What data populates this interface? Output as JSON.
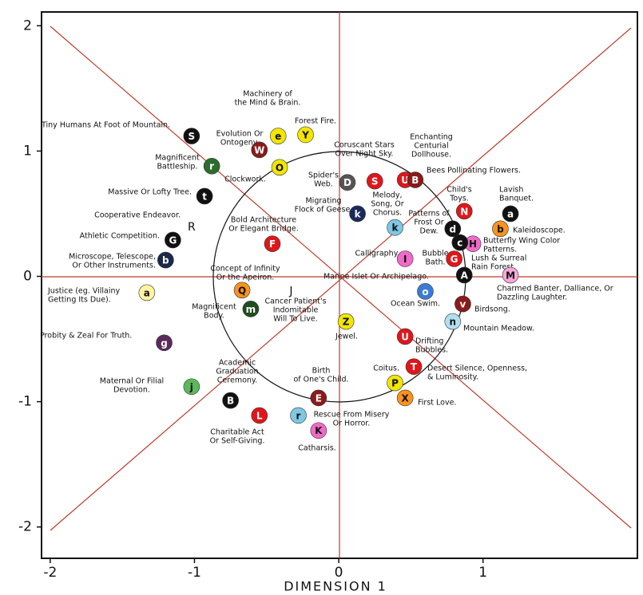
{
  "chart_data": {
    "type": "scatter",
    "x_label": "DIMENSION 1",
    "xlim": [
      -2.06,
      2.07
    ],
    "ylim": [
      -2.25,
      2.11
    ],
    "xticks": [
      -2,
      -1,
      0,
      1
    ],
    "yticks": [
      -2,
      -1,
      0,
      1,
      2
    ],
    "points": [
      {
        "letter": "S",
        "color": "#111111",
        "x": -1.02,
        "y": 1.12,
        "label": [
          "Tiny Humans At Foot of Mountain."
        ]
      },
      {
        "letter": "W",
        "color": "#8b1a1a",
        "x": -0.55,
        "y": 1.01,
        "label": [
          "Evolution Or",
          "Ontogeny."
        ]
      },
      {
        "letter": "e",
        "color": "#f2e600",
        "x": -0.42,
        "y": 1.12,
        "label": [
          "Machinery of",
          "the Mind & Brain."
        ]
      },
      {
        "letter": "Y",
        "color": "#f2e600",
        "x": -0.23,
        "y": 1.13,
        "label": [
          "Forest Fire."
        ]
      },
      {
        "letter": "r",
        "color": "#2e6b2e",
        "x": -0.88,
        "y": 0.88,
        "label": [
          "Magnificent",
          "Battleship."
        ]
      },
      {
        "letter": "O",
        "color": "#f2e600",
        "x": -0.41,
        "y": 0.87,
        "label": [
          "Clockwork."
        ]
      },
      {
        "letter": "D",
        "color": "#555555",
        "x": 0.06,
        "y": 0.75,
        "label": [
          "Spider's",
          "Web."
        ]
      },
      {
        "letter": "S",
        "color": "#e0161b",
        "x": 0.25,
        "y": 0.76,
        "label": [
          "Coruscant Stars",
          "Over Night Sky."
        ]
      },
      {
        "letter": "U",
        "color": "#e0161b",
        "x": 0.46,
        "y": 0.77,
        "label": [
          "Enchanting",
          "Centurial",
          "Dollhouse."
        ]
      },
      {
        "letter": "B",
        "color": "#8b1a1a",
        "x": 0.53,
        "y": 0.77,
        "label": [
          "Bees Pollinating Flowers."
        ]
      },
      {
        "letter": "t",
        "color": "#111111",
        "x": -0.93,
        "y": 0.64,
        "label": [
          "Massive Or Lofty Tree."
        ]
      },
      {
        "letter": "R",
        "x": -1.02,
        "y": 0.39,
        "label": [
          "Cooperative Endeavor."
        ]
      },
      {
        "letter": "G",
        "color": "#111111",
        "x": -1.15,
        "y": 0.29,
        "label": [
          "Athletic Competition."
        ]
      },
      {
        "letter": "b",
        "color": "#1a2a4a",
        "x": -1.2,
        "y": 0.13,
        "label": [
          "Microscope, Telescope,",
          "Or Other Instruments."
        ]
      },
      {
        "letter": "F",
        "color": "#e0161b",
        "x": -0.46,
        "y": 0.26,
        "label": [
          "Bold Architecture",
          "Or Elegant Bridge."
        ]
      },
      {
        "letter": "k",
        "color": "#1a2a5a",
        "x": 0.13,
        "y": 0.5,
        "label": [
          "Migrating",
          "Flock of Geese."
        ]
      },
      {
        "letter": "k",
        "color": "#7ec8e3",
        "x": 0.39,
        "y": 0.39,
        "label": [
          "Melody,",
          "Song, Or",
          "Chorus."
        ]
      },
      {
        "letter": "N",
        "color": "#e0161b",
        "x": 0.87,
        "y": 0.52,
        "label": [
          "Child's",
          "Toys."
        ]
      },
      {
        "letter": "d",
        "color": "#111111",
        "x": 0.79,
        "y": 0.38,
        "label": [
          "Patterns of",
          "Frost Or",
          "Dew."
        ]
      },
      {
        "letter": "a",
        "color": "#111111",
        "x": 1.19,
        "y": 0.5,
        "label": [
          "Lavish",
          "Banquet."
        ]
      },
      {
        "letter": "b",
        "color": "#f7931e",
        "x": 1.12,
        "y": 0.38,
        "label": [
          "Kaleidoscope."
        ]
      },
      {
        "letter": "H",
        "color": "#f06ac8",
        "x": 0.93,
        "y": 0.26,
        "label": [
          "Butterfly Wing Color",
          "Patterns."
        ]
      },
      {
        "letter": "I",
        "color": "#f06ac8",
        "x": 0.46,
        "y": 0.14,
        "label": [
          "Calligraphy."
        ]
      },
      {
        "letter": "G",
        "color": "#e0161b",
        "x": 0.8,
        "y": 0.14,
        "label": [
          "Bubble",
          "Bath."
        ]
      },
      {
        "letter": "A",
        "color": "#111111",
        "x": 0.87,
        "y": 0.01,
        "label": [
          "Marine Islet Or Archipelago."
        ]
      },
      {
        "letter": "c",
        "color": "#111111",
        "x": 0.84,
        "y": 0.27,
        "label": [
          "Lush & Surreal",
          "Rain Forest."
        ]
      },
      {
        "letter": "M",
        "color": "#f7a8d8",
        "x": 1.19,
        "y": 0.01,
        "label": [
          "Charmed Banter, Dalliance, Or",
          "Dazzling Laughter."
        ]
      },
      {
        "letter": "Q",
        "color": "#f7931e",
        "x": -0.67,
        "y": -0.11,
        "label": [
          "Concept of Infinity",
          "Or the Apeiron."
        ]
      },
      {
        "letter": "a",
        "color": "#fff3a0",
        "x": -1.33,
        "y": -0.13,
        "label": [
          "Justice (eg. Villainy",
          "Getting Its Due)."
        ]
      },
      {
        "letter": "J",
        "x": -0.33,
        "y": -0.12,
        "label": [
          "Cancer Patient's",
          "Indomitable",
          "Will To Live."
        ]
      },
      {
        "letter": "m",
        "color": "#1f4d1f",
        "x": -0.61,
        "y": -0.26,
        "label": [
          "Magnificent",
          "Body."
        ]
      },
      {
        "letter": "o",
        "color": "#3a7bd5",
        "x": 0.6,
        "y": -0.12,
        "label": [
          "Ocean Swim."
        ]
      },
      {
        "letter": "v",
        "color": "#8b1a1a",
        "x": 0.86,
        "y": -0.22,
        "label": [
          "Birdsong."
        ]
      },
      {
        "letter": "n",
        "color": "#b0e0f0",
        "x": 0.79,
        "y": -0.36,
        "label": [
          "Mountain Meadow."
        ]
      },
      {
        "letter": "Z",
        "color": "#f2e600",
        "x": 0.05,
        "y": -0.36,
        "label": [
          "Jewel."
        ]
      },
      {
        "letter": "g",
        "color": "#5a2a5a",
        "x": -1.21,
        "y": -0.53,
        "label": [
          "Probity & Zeal For Truth."
        ]
      },
      {
        "letter": "U",
        "color": "#e0161b",
        "x": 0.46,
        "y": -0.48,
        "label": [
          "Drifting",
          "Bubbles."
        ]
      },
      {
        "letter": "T",
        "color": "#e0161b",
        "x": 0.52,
        "y": -0.72,
        "label": [
          "Desert Silence, Openness,",
          "& Luminosity."
        ]
      },
      {
        "letter": "P",
        "color": "#f2e600",
        "x": 0.39,
        "y": -0.85,
        "label": [
          "Coitus."
        ]
      },
      {
        "letter": "X",
        "color": "#f7931e",
        "x": 0.46,
        "y": -0.97,
        "label": [
          "First Love."
        ]
      },
      {
        "letter": "B",
        "color": "#111111",
        "x": -0.75,
        "y": -0.99,
        "label": [
          "Academic",
          "Graduation",
          "Ceremony."
        ]
      },
      {
        "letter": "j",
        "color": "#5cb85c",
        "x": -1.02,
        "y": -0.88,
        "label": [
          "Maternal Or Filial",
          "Devotion."
        ]
      },
      {
        "letter": "E",
        "color": "#8b1a1a",
        "x": -0.14,
        "y": -0.97,
        "label": [
          "Birth",
          "of One's Child."
        ]
      },
      {
        "letter": "L",
        "color": "#e0161b",
        "x": -0.55,
        "y": -1.11,
        "label": [
          "Charitable Act",
          "Or Self-Giving."
        ]
      },
      {
        "letter": "r",
        "color": "#7ec8e3",
        "x": -0.28,
        "y": -1.11,
        "label": [
          "Rescue From Misery",
          "Or Horror."
        ]
      },
      {
        "letter": "K",
        "color": "#f06ac8",
        "x": -0.14,
        "y": -1.23,
        "label": [
          "Catharsis."
        ]
      }
    ]
  }
}
